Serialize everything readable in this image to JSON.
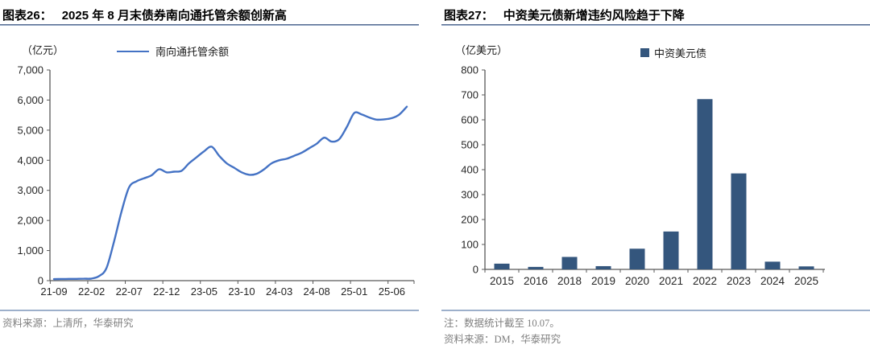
{
  "colors": {
    "line_series": "#4472C4",
    "bar_series": "#34567D",
    "axis": "#595959",
    "note_text": "#7f7f7f",
    "title_rule": "#44597e",
    "notes_divider": "#9db0cb"
  },
  "figures": [
    {
      "label": "图表26：",
      "title": "2025 年 8 月末债券南向通托管余额创新高",
      "unit": "（亿元）",
      "legend": "南向通托管余额",
      "source": "资料来源：上清所，华泰研究"
    },
    {
      "label": "图表27：",
      "title": "中资美元债新增违约风险趋于下降",
      "unit": "（亿美元）",
      "legend": "中资美元债",
      "note": "注：数据统计截至 10.07。",
      "source": "资料来源：DM，华泰研究"
    }
  ],
  "chart_data": [
    {
      "type": "line",
      "title": "2025 年 8 月末债券南向通托管余额创新高",
      "ylabel": "（亿元）",
      "legend": "南向通托管余额",
      "color": "#4472C4",
      "ylim": [
        0,
        7000
      ],
      "y_step": 1000,
      "frequency": "monthly",
      "x_range": [
        "21-09",
        "25-08"
      ],
      "x_tick_labels": [
        "21-09",
        "22-02",
        "22-07",
        "22-12",
        "23-05",
        "23-10",
        "24-03",
        "24-08",
        "25-01",
        "25-06"
      ],
      "x_tick_every": 5,
      "values": [
        50,
        55,
        58,
        60,
        65,
        70,
        150,
        420,
        1300,
        2300,
        3100,
        3300,
        3400,
        3500,
        3700,
        3600,
        3620,
        3650,
        3900,
        4100,
        4300,
        4450,
        4150,
        3900,
        3750,
        3600,
        3520,
        3550,
        3700,
        3900,
        4000,
        4050,
        4150,
        4250,
        4400,
        4550,
        4750,
        4620,
        4700,
        5100,
        5570,
        5520,
        5420,
        5350,
        5360,
        5400,
        5520,
        5780
      ],
      "grid": false,
      "legend_position": "top"
    },
    {
      "type": "bar",
      "title": "中资美元债新增违约风险趋于下降",
      "ylabel": "（亿美元）",
      "legend": "中资美元债",
      "color": "#34567D",
      "ylim": [
        0,
        800
      ],
      "y_step": 100,
      "categories": [
        "2015",
        "2016",
        "2018",
        "2019",
        "2020",
        "2021",
        "2022",
        "2023",
        "2024",
        "2025"
      ],
      "values": [
        23,
        10,
        50,
        13,
        83,
        152,
        683,
        385,
        31,
        12
      ],
      "grid": false,
      "legend_position": "top"
    }
  ]
}
